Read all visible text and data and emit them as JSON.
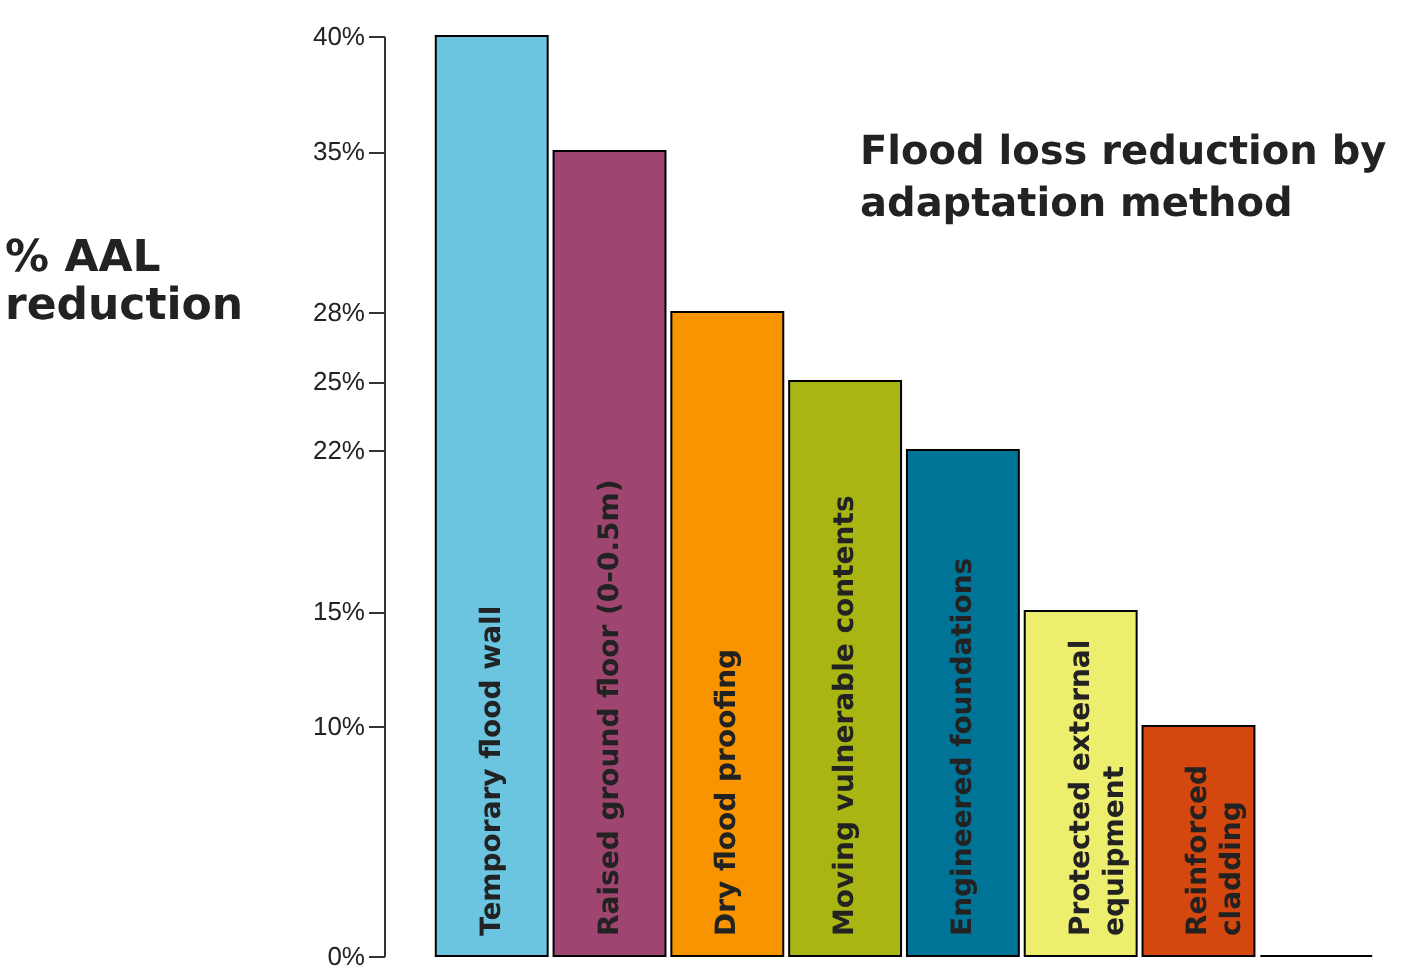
{
  "chart_data": {
    "type": "bar",
    "title": "Flood loss reduction by\nadaptation method",
    "ylabel": "% AAL\nreduction",
    "categories": [
      "Temporary flood wall",
      "Raised ground floor (0-0.5m)",
      "Dry flood proofing",
      "Moving vulnerable contents",
      "Engineered foundations",
      "Protected external\nequipment",
      "Reinforced\ncladding",
      null
    ],
    "values": [
      40,
      35,
      28,
      25,
      22,
      15,
      10,
      0
    ],
    "colors": [
      "#6cc5e0",
      "#9e4570",
      "#f79400",
      "#a8b512",
      "#007496",
      "#eded6e",
      "#d4470f",
      "#000000"
    ],
    "ylim": [
      0,
      40
    ],
    "yticks": [
      {
        "value": 0,
        "label": "0%"
      },
      {
        "value": 10,
        "label": "10%"
      },
      {
        "value": 15,
        "label": "15%"
      },
      {
        "value": 22,
        "label": "22%"
      },
      {
        "value": 25,
        "label": "25%"
      },
      {
        "value": 28,
        "label": "28%"
      },
      {
        "value": 35,
        "label": "35%"
      },
      {
        "value": 40,
        "label": "40%"
      }
    ],
    "grid": false
  }
}
